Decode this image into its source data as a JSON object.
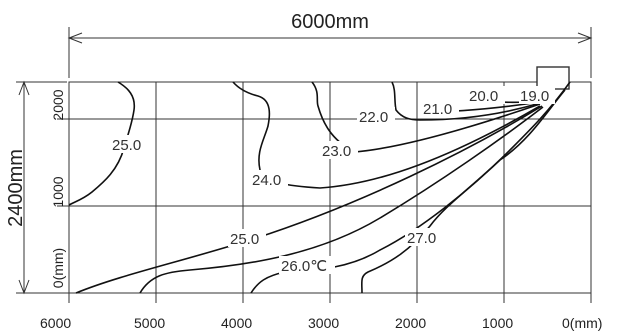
{
  "dimensions": {
    "width_label": "6000mm",
    "height_label": "2400mm"
  },
  "axes": {
    "x_ticks": [
      "6000",
      "5000",
      "4000",
      "3000",
      "2000",
      "1000",
      "0(mm)"
    ],
    "y_ticks": [
      "2000",
      "1000",
      "0(mm)"
    ]
  },
  "isotherms": [
    {
      "id": "t25a",
      "label": "25.0"
    },
    {
      "id": "t24",
      "label": "24.0"
    },
    {
      "id": "t23",
      "label": "23.0"
    },
    {
      "id": "t22",
      "label": "22.0"
    },
    {
      "id": "t21",
      "label": "21.0"
    },
    {
      "id": "t20",
      "label": "20.0"
    },
    {
      "id": "t19",
      "label": "19.0"
    },
    {
      "id": "t25b",
      "label": "25.0"
    },
    {
      "id": "t26",
      "label": "26.0℃"
    },
    {
      "id": "t27",
      "label": "27.0"
    }
  ]
}
